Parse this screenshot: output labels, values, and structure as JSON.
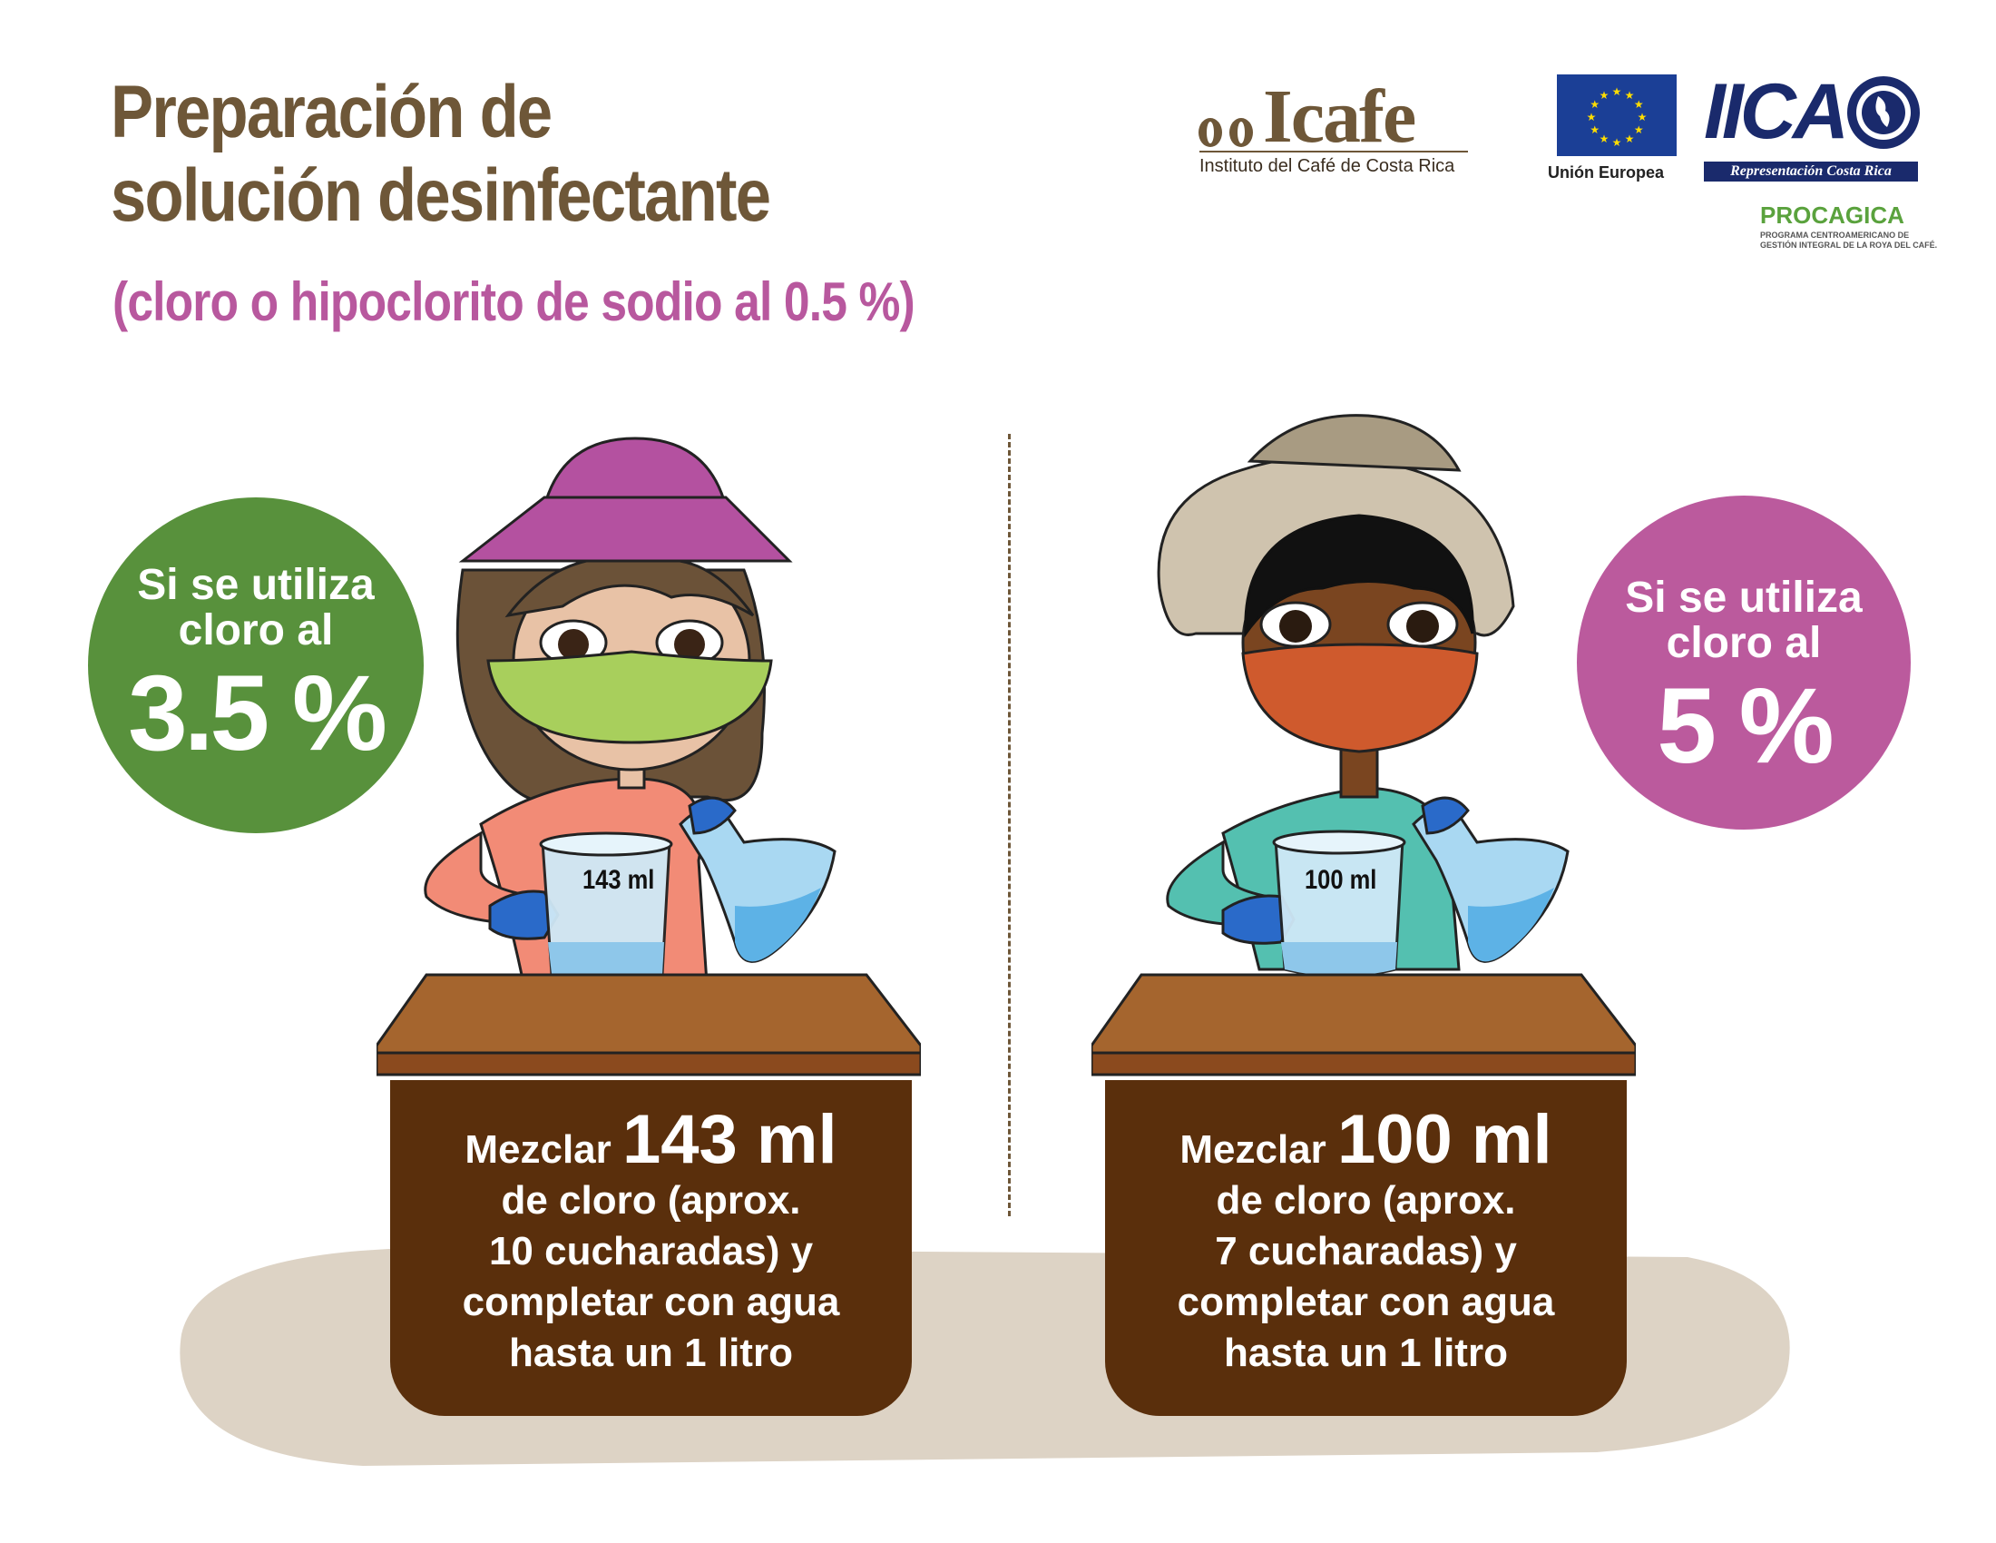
{
  "header": {
    "title_line1": "Preparación de",
    "title_line2": "solución desinfectante",
    "subtitle": "(cloro o hipoclorito de sodio al 0.5 %)"
  },
  "logos": {
    "icafe_name": "Icafe",
    "icafe_tagline": "Instituto del Café de Costa Rica",
    "eu_label": "Unión Europea",
    "iica_name": "IICA",
    "iica_tagline": "Representación Costa Rica",
    "procagica_name": "PROCAGICA",
    "procagica_tagline": "PROGRAMA CENTROAMERICANO DE GESTIÓN INTEGRAL DE LA ROYA DEL CAFÉ."
  },
  "left": {
    "badge_line1": "Si se utiliza",
    "badge_line2": "cloro al",
    "badge_pct": "3.5 %",
    "beaker_label": "143 ml",
    "text_prefix": "Mezclar",
    "text_amount": "143 ml",
    "text_line2": "de cloro (aprox.",
    "text_line3": "10 cucharadas) y",
    "text_line4": "completar con agua",
    "text_line5": "hasta un 1 litro",
    "color": "#58913c"
  },
  "right": {
    "badge_line1": "Si se utiliza",
    "badge_line2": "cloro al",
    "badge_pct": "5 %",
    "beaker_label": "100 ml",
    "text_prefix": "Mezclar",
    "text_amount": "100 ml",
    "text_line2": "de cloro (aprox.",
    "text_line3": "7 cucharadas) y",
    "text_line4": "completar con agua",
    "text_line5": "hasta un 1 litro",
    "color": "#bb5a9d"
  },
  "colors": {
    "title": "#6e5738",
    "subtitle": "#b8589e",
    "cabinet": "#5a2f0c",
    "table_top": "#a5652e"
  },
  "icons": {
    "left_figure": "woman-with-purple-hat-icon",
    "right_figure": "man-with-straw-hat-icon",
    "beaker": "beaker-icon",
    "flask": "flask-icon",
    "eu_flag": "eu-flag-icon",
    "globe": "globe-icon"
  }
}
